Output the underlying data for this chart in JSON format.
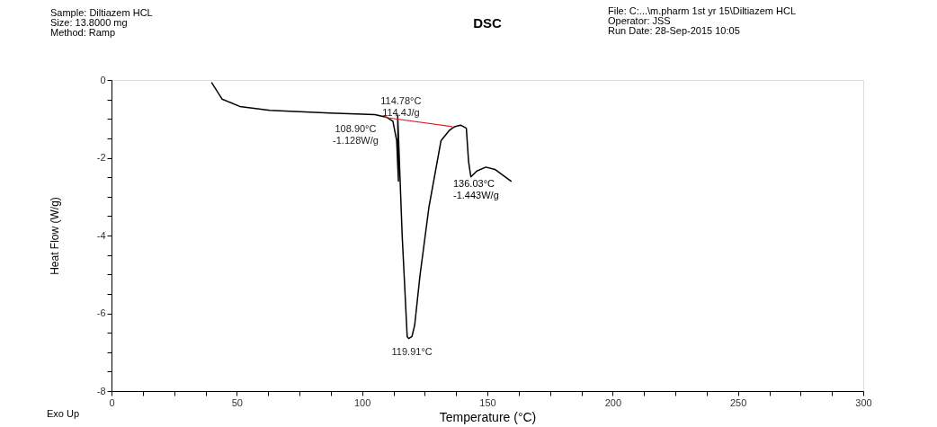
{
  "chart_data": {
    "type": "line",
    "title": "DSC",
    "xlabel": "Temperature (°C)",
    "ylabel": "Heat Flow (W/g)",
    "xlim": [
      0,
      300
    ],
    "ylim": [
      -8,
      0
    ],
    "xticks": [
      0,
      {
        "value": 12.5,
        "label": null
      },
      {
        "value": 25,
        "label": null
      },
      {
        "value": 37.5,
        "label": null
      },
      50,
      {
        "value": 62.5,
        "label": null
      },
      {
        "value": 75,
        "label": null
      },
      {
        "value": 87.5,
        "label": null
      },
      100,
      {
        "value": 112.5,
        "label": null
      },
      {
        "value": 125,
        "label": null
      },
      {
        "value": 137.5,
        "label": null
      },
      150,
      {
        "value": 162.5,
        "label": null
      },
      {
        "value": 175,
        "label": null
      },
      {
        "value": 187.5,
        "label": null
      },
      200,
      {
        "value": 212.5,
        "label": null
      },
      {
        "value": 225,
        "label": null
      },
      {
        "value": 237.5,
        "label": null
      },
      250,
      {
        "value": 262.5,
        "label": null
      },
      {
        "value": 275,
        "label": null
      },
      {
        "value": 287.5,
        "label": null
      },
      300
    ],
    "yticks": [
      -8,
      {
        "value": -7.5,
        "label": null
      },
      {
        "value": -7,
        "label": null
      },
      {
        "value": -6.5,
        "label": null
      },
      -6,
      {
        "value": -5.5,
        "label": null
      },
      {
        "value": -5,
        "label": null
      },
      {
        "value": -4.5,
        "label": null
      },
      -4,
      {
        "value": -3.5,
        "label": null
      },
      {
        "value": -3,
        "label": null
      },
      {
        "value": -2.5,
        "label": null
      },
      -2,
      {
        "value": -1.5,
        "label": null
      },
      {
        "value": -1,
        "label": null
      },
      {
        "value": -0.5,
        "label": null
      },
      0
    ],
    "grid": false,
    "line_style": "solid",
    "series": [
      {
        "color": "#000000",
        "x": [
          39.9,
          44.1,
          51.2,
          63.2,
          87.2,
          105.1,
          109.9,
          112.3,
          113.8,
          114.5,
          114.2,
          116.0,
          118.0,
          118.6,
          119.9,
          121.0,
          123.1,
          126.7,
          131.5,
          134.9,
          136.9,
          139.3,
          141.6,
          142.5,
          143.4,
          145.8,
          149.4,
          153.0,
          159.6
        ],
        "values": [
          -0.06,
          -0.49,
          -0.68,
          -0.78,
          -0.85,
          -0.89,
          -0.96,
          -1.06,
          -1.56,
          -2.6,
          -0.9,
          -4.0,
          -6.6,
          -6.65,
          -6.6,
          -6.3,
          -5.03,
          -3.26,
          -1.56,
          -1.29,
          -1.2,
          -1.16,
          -1.24,
          -2.1,
          -2.49,
          -2.34,
          -2.24,
          -2.3,
          -2.61
        ]
      },
      {
        "color": "#e02020",
        "x": [
          108.9,
          136.03
        ],
        "values": [
          -0.96,
          -1.2
        ]
      }
    ],
    "annotations": [
      "Sample: Diltiazem HCL",
      "Size:  13.8000 mg",
      "Method: Ramp",
      "File: C:...\\m.pharm 1st yr 15\\Diltiazem HCL",
      "Operator: JSS",
      "Run Date: 28-Sep-2015 10:05",
      "Exo Up",
      {
        "text": "114.78°C\n114.4J/g",
        "x": 114.78,
        "y": -0.9
      },
      {
        "text": "108.90°C\n-1.128W/g",
        "x": 108.9,
        "y": -0.96
      },
      {
        "text": "119.91°C",
        "x": 119.91,
        "y": -6.7
      },
      "136.03°C\n-1.443W/g"
    ]
  }
}
